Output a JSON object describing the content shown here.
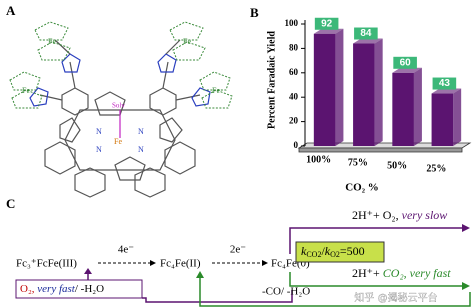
{
  "panels": {
    "a": {
      "label": "A",
      "axial_ligand": "Solv",
      "center_metal": "Fe",
      "ferrocene_metal": "Fe",
      "nitrogen": "N"
    },
    "c": {
      "label": "C",
      "start": "Fc₃⁺FcFe(III)",
      "step1": "4e⁻",
      "middle": "Fc₄Fe(II)",
      "step2": "2e⁻",
      "end": "Fc₄Fe(0)",
      "top_reaction": [
        "2H⁺+ O₂, ",
        "very slow"
      ],
      "ratio": [
        "k",
        "CO2",
        "/",
        "k",
        "O2",
        "=500"
      ],
      "bottom_reaction": [
        "2H⁺+ ",
        "CO₂, very fast"
      ],
      "o2_return": [
        "O₂, ",
        "very fast",
        "/ -H₂O"
      ],
      "co2_return": "-CO/ -H₂O",
      "watermark": "知乎 @揭秘云平台"
    }
  },
  "chart_data": {
    "type": "bar",
    "panel_label": "B",
    "y_label": "Percent Faradaic Yield",
    "x_label": "CO₂ %",
    "categories": [
      "100%",
      "75%",
      "50%",
      "25%"
    ],
    "values": [
      92,
      84,
      60,
      43
    ],
    "color": "#5b1470",
    "label_color": "#3cb879",
    "ylim": [
      0,
      100
    ],
    "yticks": [
      0,
      20,
      40,
      60,
      80,
      100
    ]
  }
}
